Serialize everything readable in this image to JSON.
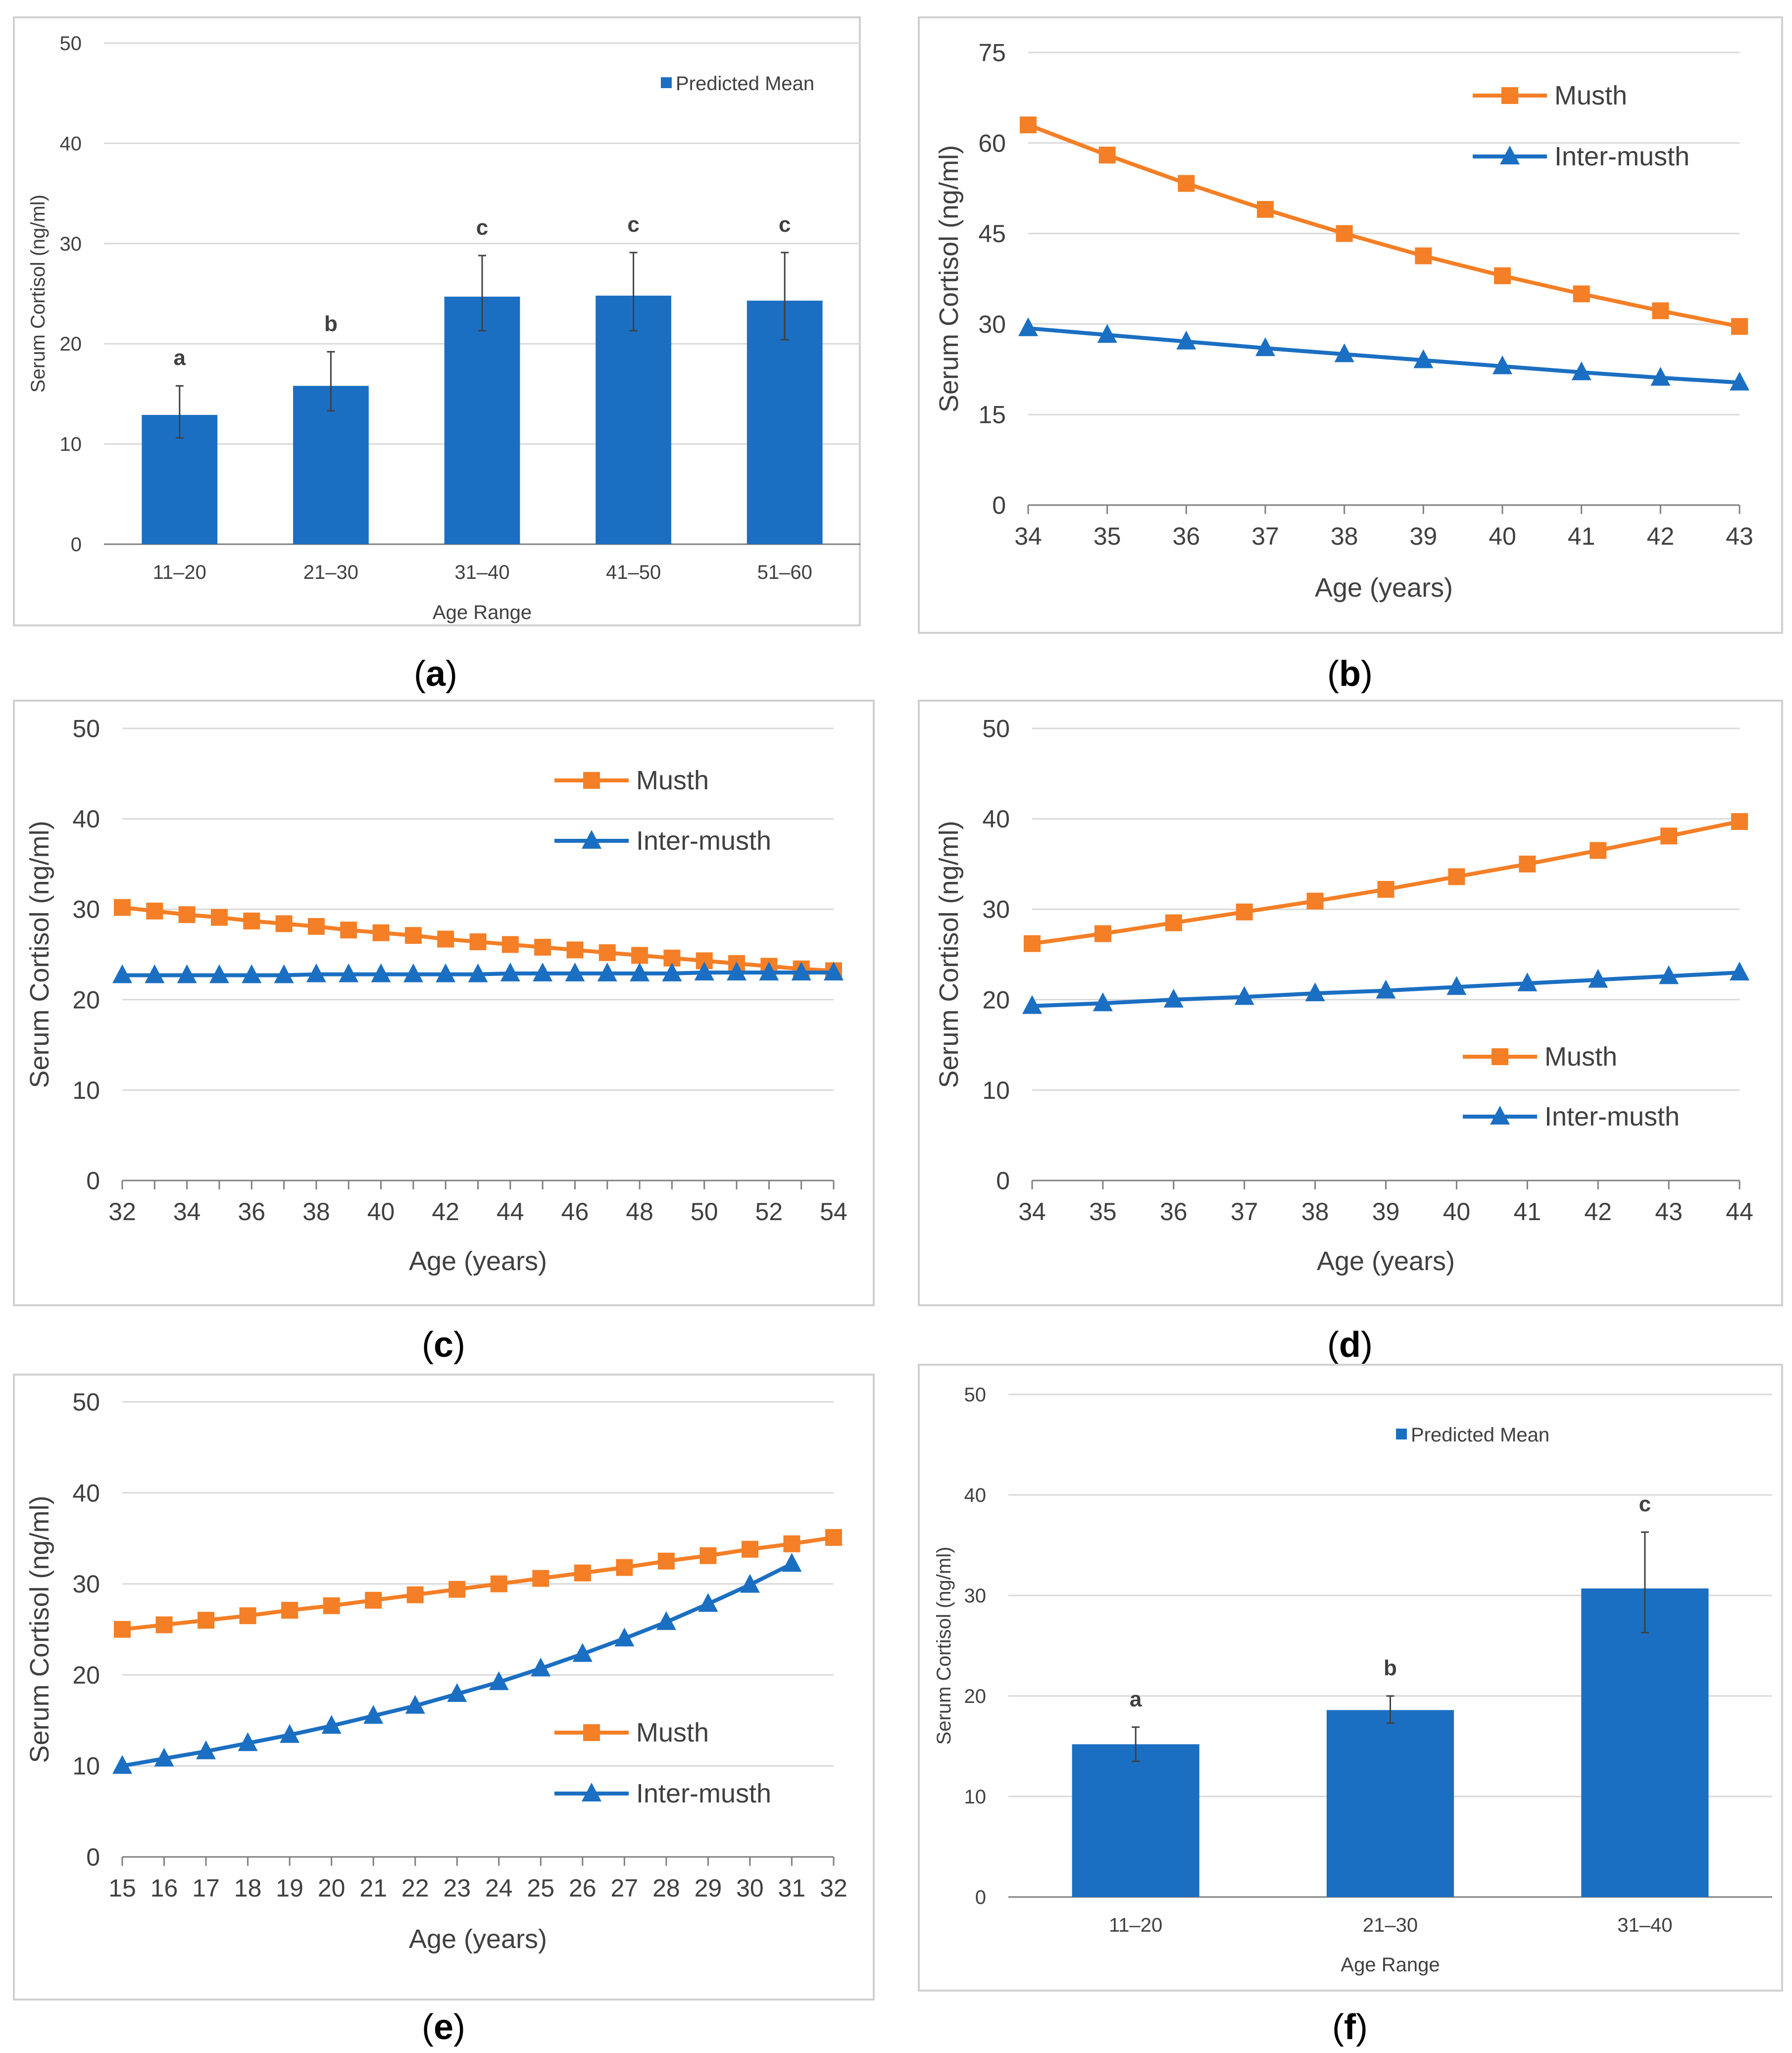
{
  "colors": {
    "musth": "#F47F26",
    "inter": "#1B6FC2",
    "bar": "#1B6FC2",
    "grid": "#D9D9D9",
    "axis": "#7F7F7F",
    "text": "#404040",
    "frame": "#D0D0D0"
  },
  "panels": {
    "a": {
      "caption": "(a)",
      "caption_letter": "a",
      "chart_data": {
        "type": "bar",
        "title": "",
        "xlabel": "Age Range",
        "ylabel": "Serum Cortisol (ng/ml)",
        "ylim": [
          0,
          50
        ],
        "yticks": [
          "0",
          "10",
          "20",
          "30",
          "40",
          "50"
        ],
        "categories": [
          "11–20",
          "21–30",
          "31–40",
          "41–50",
          "51–60"
        ],
        "values": [
          12.9,
          15.8,
          24.7,
          24.8,
          24.3
        ],
        "err_low": [
          10.6,
          13.3,
          21.3,
          21.3,
          20.4
        ],
        "err_high": [
          15.8,
          19.2,
          28.8,
          29.1,
          29.1
        ],
        "letters": [
          "a",
          "b",
          "c",
          "c",
          "c"
        ],
        "legend": "Predicted Mean"
      }
    },
    "b": {
      "caption": "(b)",
      "caption_letter": "b",
      "chart_data": {
        "type": "line",
        "xlabel": "Age (years)",
        "ylabel": "Serum Cortisol (ng/ml)",
        "ylim": [
          0,
          75
        ],
        "yticks": [
          "0",
          "15",
          "30",
          "45",
          "60",
          "75"
        ],
        "x": [
          "34",
          "35",
          "36",
          "37",
          "38",
          "39",
          "40",
          "41",
          "42",
          "43"
        ],
        "series": [
          {
            "name": "Musth",
            "values": [
              63.0,
              58.0,
              53.3,
              49.0,
              45.0,
              41.3,
              38.0,
              35.0,
              32.2,
              29.6
            ]
          },
          {
            "name": "Inter-musth",
            "values": [
              29.3,
              28.2,
              27.1,
              26.0,
              25.0,
              24.0,
              23.0,
              22.0,
              21.1,
              20.3
            ]
          }
        ],
        "legend": [
          "Musth",
          "Inter-musth"
        ]
      }
    },
    "c": {
      "caption": "(c)",
      "caption_letter": "c",
      "chart_data": {
        "type": "line",
        "xlabel": "Age (years)",
        "ylabel": "Serum Cortisol (ng/ml)",
        "ylim": [
          0,
          50
        ],
        "yticks": [
          "0",
          "10",
          "20",
          "30",
          "40",
          "50"
        ],
        "x": [
          "32",
          "33",
          "34",
          "35",
          "36",
          "37",
          "38",
          "39",
          "40",
          "41",
          "42",
          "43",
          "44",
          "45",
          "46",
          "47",
          "48",
          "49",
          "50",
          "51",
          "52",
          "53",
          "54"
        ],
        "xtick_labels": [
          "32",
          "",
          "34",
          "",
          "36",
          "",
          "38",
          "",
          "40",
          "",
          "42",
          "",
          "44",
          "",
          "46",
          "",
          "48",
          "",
          "50",
          "",
          "52",
          "",
          "54"
        ],
        "series": [
          {
            "name": "Musth",
            "values": [
              30.2,
              29.8,
              29.4,
              29.1,
              28.7,
              28.4,
              28.1,
              27.7,
              27.4,
              27.1,
              26.7,
              26.4,
              26.1,
              25.8,
              25.5,
              25.2,
              24.9,
              24.6,
              24.3,
              24.0,
              23.7,
              23.4,
              23.2
            ]
          },
          {
            "name": "Inter-musth",
            "values": [
              22.7,
              22.7,
              22.7,
              22.7,
              22.7,
              22.7,
              22.8,
              22.8,
              22.8,
              22.8,
              22.8,
              22.8,
              22.9,
              22.9,
              22.9,
              22.9,
              22.9,
              22.9,
              23.0,
              23.0,
              23.0,
              23.0,
              23.0
            ]
          }
        ],
        "legend": [
          "Musth",
          "Inter-musth"
        ]
      }
    },
    "d": {
      "caption": "(d)",
      "caption_letter": "d",
      "chart_data": {
        "type": "line",
        "xlabel": "Age (years)",
        "ylabel": "Serum Cortisol (ng/ml)",
        "ylim": [
          0,
          50
        ],
        "yticks": [
          "0",
          "10",
          "20",
          "30",
          "40",
          "50"
        ],
        "x": [
          "34",
          "35",
          "36",
          "37",
          "38",
          "39",
          "40",
          "41",
          "42",
          "43",
          "44"
        ],
        "series": [
          {
            "name": "Musth",
            "values": [
              26.2,
              27.3,
              28.5,
              29.7,
              30.9,
              32.2,
              33.6,
              35.0,
              36.5,
              38.1,
              39.7
            ]
          },
          {
            "name": "Inter-musth",
            "values": [
              19.3,
              19.6,
              20.0,
              20.3,
              20.7,
              21.0,
              21.4,
              21.8,
              22.2,
              22.6,
              23.0
            ]
          }
        ],
        "legend": [
          "Musth",
          "Inter-musth"
        ]
      }
    },
    "e": {
      "caption": "(e)",
      "caption_letter": "e",
      "chart_data": {
        "type": "line",
        "xlabel": "Age (years)",
        "ylabel": "Serum Cortisol (ng/ml)",
        "ylim": [
          0,
          50
        ],
        "yticks": [
          "0",
          "10",
          "20",
          "30",
          "40",
          "50"
        ],
        "x": [
          "15",
          "16",
          "17",
          "18",
          "19",
          "20",
          "21",
          "22",
          "23",
          "24",
          "25",
          "26",
          "27",
          "28",
          "29",
          "30",
          "31",
          "32"
        ],
        "series": [
          {
            "name": "Musth",
            "values": [
              25.0,
              25.5,
              26.0,
              26.5,
              27.1,
              27.6,
              28.2,
              28.8,
              29.4,
              30.0,
              30.6,
              31.2,
              31.8,
              32.5,
              33.1,
              33.8,
              34.4,
              35.1
            ]
          },
          {
            "name": "Inter-musth",
            "values": [
              10.0,
              10.8,
              11.6,
              12.5,
              13.4,
              14.4,
              15.5,
              16.6,
              17.9,
              19.2,
              20.7,
              22.3,
              24.0,
              25.8,
              27.8,
              29.9,
              32.2,
              null
            ]
          }
        ],
        "legend": [
          "Musth",
          "Inter-musth"
        ]
      }
    },
    "f": {
      "caption": "(f)",
      "caption_letter": "f",
      "chart_data": {
        "type": "bar",
        "title": "",
        "xlabel": "Age Range",
        "ylabel": "Serum Cortisol (ng/ml)",
        "ylim": [
          0,
          50
        ],
        "yticks": [
          "0",
          "10",
          "20",
          "30",
          "40",
          "50"
        ],
        "categories": [
          "11–20",
          "21–30",
          "31–40"
        ],
        "values": [
          15.2,
          18.6,
          30.7
        ],
        "err_low": [
          13.5,
          17.3,
          26.3
        ],
        "err_high": [
          16.9,
          20.0,
          36.3
        ],
        "letters": [
          "a",
          "b",
          "c"
        ],
        "legend": "Predicted Mean"
      }
    }
  }
}
